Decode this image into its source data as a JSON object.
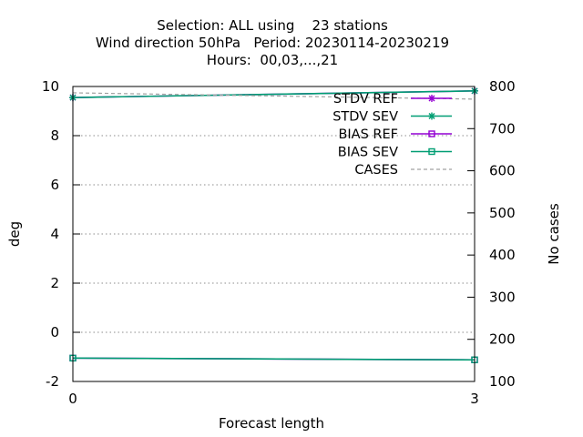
{
  "title_lines": [
    "Selection: ALL using    23 stations",
    "Wind direction 50hPa   Period: 20230114-20230219",
    "Hours:  00,03,...,21"
  ],
  "chart_data": {
    "type": "line",
    "xlabel": "Forecast length",
    "ylabel": "deg",
    "y2label": "No cases",
    "xlim": [
      0,
      3
    ],
    "ylim": [
      -2,
      10
    ],
    "y2lim": [
      100,
      800
    ],
    "xticks": [
      0,
      3
    ],
    "yticks": [
      -2,
      0,
      2,
      4,
      6,
      8,
      10
    ],
    "y2ticks": [
      100,
      200,
      300,
      400,
      500,
      600,
      700,
      800
    ],
    "grid": "horizontal",
    "legend_position": "top-right",
    "series": [
      {
        "name": "STDV REF",
        "axis": "y",
        "color": "#9400d3",
        "marker": "star",
        "x": [
          0,
          3
        ],
        "values": [
          9.55,
          9.82
        ]
      },
      {
        "name": "STDV SEV",
        "axis": "y",
        "color": "#009e73",
        "marker": "star",
        "x": [
          0,
          3
        ],
        "values": [
          9.55,
          9.82
        ]
      },
      {
        "name": "BIAS REF",
        "axis": "y",
        "color": "#9400d3",
        "marker": "square",
        "x": [
          0,
          3
        ],
        "values": [
          -1.05,
          -1.12
        ]
      },
      {
        "name": "BIAS SEV",
        "axis": "y",
        "color": "#009e73",
        "marker": "square",
        "x": [
          0,
          3
        ],
        "values": [
          -1.05,
          -1.12
        ]
      },
      {
        "name": "CASES",
        "axis": "y2",
        "color": "#a0a0a0",
        "dashed": true,
        "x": [
          0,
          3
        ],
        "values": [
          785,
          770
        ]
      }
    ]
  }
}
